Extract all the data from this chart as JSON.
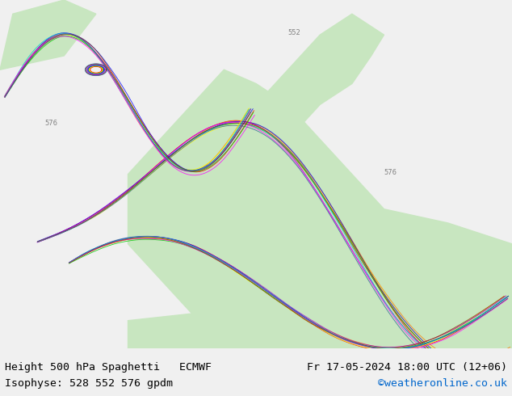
{
  "title_left": "Height 500 hPa Spaghetti   ECMWF",
  "title_right": "Fr 17-05-2024 18:00 UTC (12+06)",
  "subtitle_left": "Isophyse: 528 552 576 gpdm",
  "subtitle_right": "©weatheronline.co.uk",
  "subtitle_right_color": "#0066cc",
  "bg_color_main": "#d4edcb",
  "bg_color_ocean": "#e8eef5",
  "bg_color_bottom": "#f0f0f0",
  "text_color": "#000000",
  "bottom_bar_height": 0.12,
  "fig_width": 6.34,
  "fig_height": 4.9,
  "title_fontsize": 9.5,
  "subtitle_fontsize": 9.5,
  "map_bg_land": "#c8e6c0",
  "map_bg_sea": "#dce8f0",
  "contour_colors_552": [
    "#ff0000",
    "#ff7700",
    "#ffff00",
    "#00cc00",
    "#0000ff",
    "#9900cc",
    "#00cccc",
    "#ff00ff",
    "#884400",
    "#336699"
  ],
  "contour_colors_528": [
    "#ff0000",
    "#ff7700",
    "#ffff00",
    "#00cc00",
    "#0000ff",
    "#9900cc",
    "#00cccc",
    "#ff00ff",
    "#884400",
    "#336699"
  ],
  "contour_colors_576": [
    "#ff0000",
    "#ff7700",
    "#ffff00",
    "#00cc00",
    "#0000ff",
    "#9900cc",
    "#00cccc",
    "#ff00ff",
    "#884400",
    "#336699"
  ]
}
